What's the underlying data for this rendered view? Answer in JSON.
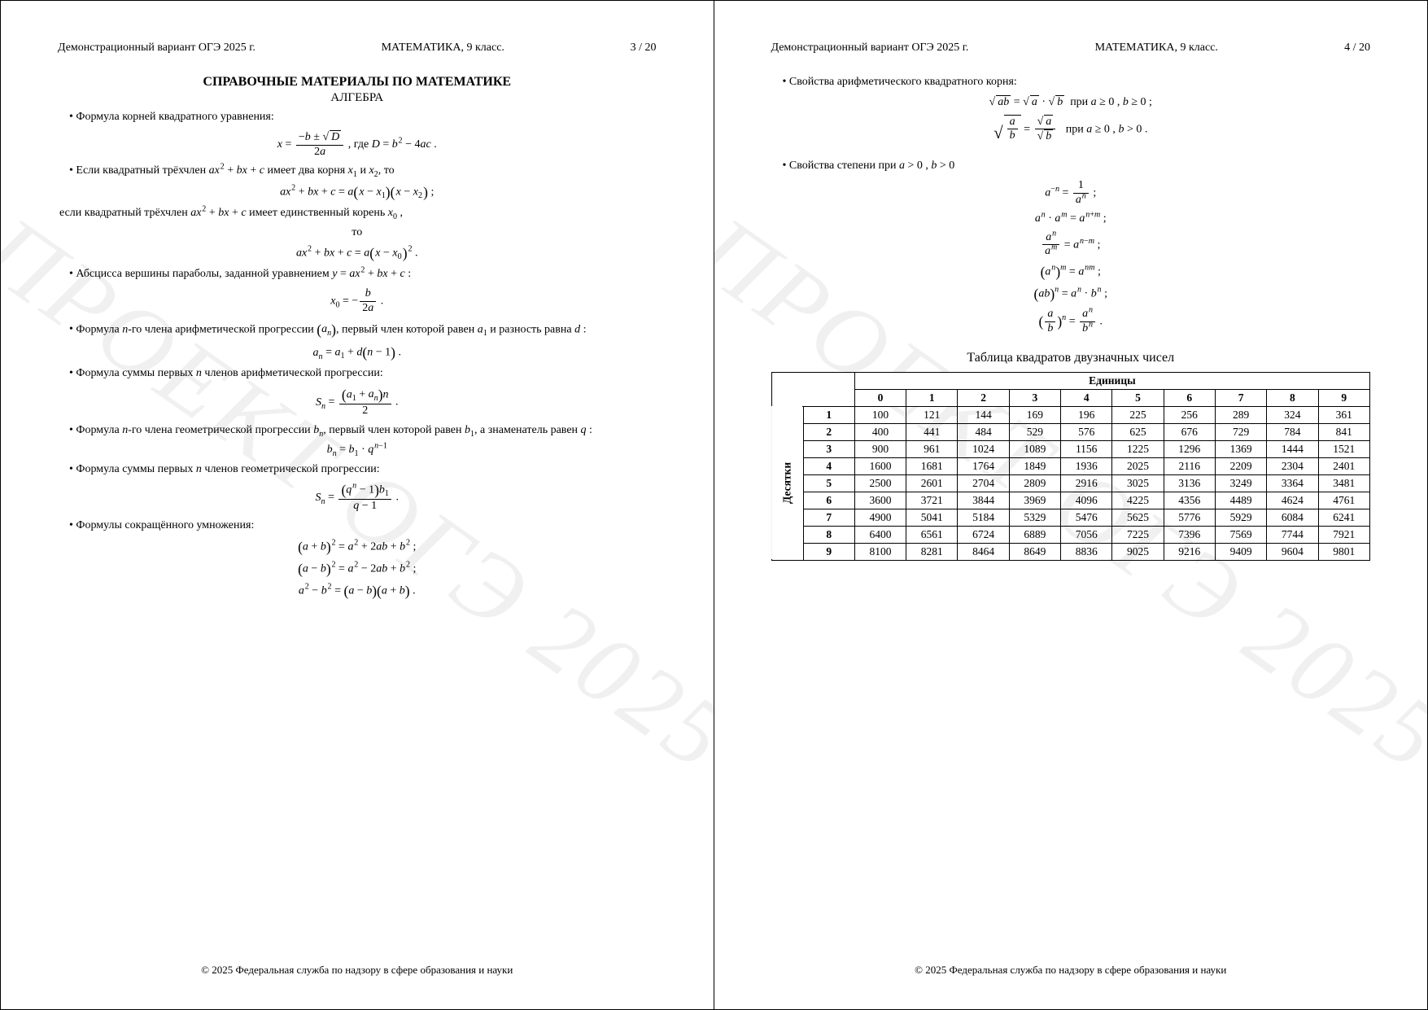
{
  "header_left": "Демонстрационный вариант ОГЭ 2025 г.",
  "header_center": "МАТЕМАТИКА, 9 класс.",
  "page3_num": "3 / 20",
  "page4_num": "4 / 20",
  "watermark": "ПРОЕКТ ОГЭ 2025",
  "footer": "© 2025 Федеральная служба по надзору в сфере образования и науки",
  "page3": {
    "title": "СПРАВОЧНЫЕ МАТЕРИАЛЫ ПО МАТЕМАТИКЕ",
    "subtitle": "АЛГЕБРА",
    "b1": "Формула корней квадратного уравнения:",
    "b2_pre": "Если квадратный трёхчлен ",
    "b2_post": " имеет два корня ",
    "b2_and": " и ",
    "b2_then": ", то",
    "b2_else_pre": "если квадратный трёхчлен ",
    "b2_else_post": " имеет единственный корень ",
    "b2_else_then": "то",
    "b3_pre": "Абсцисса вершины параболы, заданной уравнением ",
    "b4_pre": "Формула ",
    "b4_mid": "-го члена арифметической прогрессии ",
    "b4_post": ", первый член которой равен ",
    "b4_and": " и разность равна ",
    "b5": "Формула суммы первых ",
    "b5_post": " членов арифметической прогрессии:",
    "b6_pre": "Формула ",
    "b6_mid": "-го члена геометрической прогрессии ",
    "b6_post": ", первый член которой равен ",
    "b6_and": ", а знаменатель равен ",
    "b7": "Формула суммы первых ",
    "b7_post": " членов геометрической прогрессии:",
    "b8": "Формулы сокращённого умножения:"
  },
  "page4": {
    "b1": "Свойства арифметического квадратного корня:",
    "cond1": " при ",
    "b2": "Свойства степени при ",
    "table_title": "Таблица квадратов двузначных чисел",
    "units": "Единицы",
    "tens": "Десятки"
  },
  "table": {
    "cols": [
      "0",
      "1",
      "2",
      "3",
      "4",
      "5",
      "6",
      "7",
      "8",
      "9"
    ],
    "rows_header": [
      "1",
      "2",
      "3",
      "4",
      "5",
      "6",
      "7",
      "8",
      "9"
    ],
    "data": [
      [
        "100",
        "121",
        "144",
        "169",
        "196",
        "225",
        "256",
        "289",
        "324",
        "361"
      ],
      [
        "400",
        "441",
        "484",
        "529",
        "576",
        "625",
        "676",
        "729",
        "784",
        "841"
      ],
      [
        "900",
        "961",
        "1024",
        "1089",
        "1156",
        "1225",
        "1296",
        "1369",
        "1444",
        "1521"
      ],
      [
        "1600",
        "1681",
        "1764",
        "1849",
        "1936",
        "2025",
        "2116",
        "2209",
        "2304",
        "2401"
      ],
      [
        "2500",
        "2601",
        "2704",
        "2809",
        "2916",
        "3025",
        "3136",
        "3249",
        "3364",
        "3481"
      ],
      [
        "3600",
        "3721",
        "3844",
        "3969",
        "4096",
        "4225",
        "4356",
        "4489",
        "4624",
        "4761"
      ],
      [
        "4900",
        "5041",
        "5184",
        "5329",
        "5476",
        "5625",
        "5776",
        "5929",
        "6084",
        "6241"
      ],
      [
        "6400",
        "6561",
        "6724",
        "6889",
        "7056",
        "7225",
        "7396",
        "7569",
        "7744",
        "7921"
      ],
      [
        "8100",
        "8281",
        "8464",
        "8649",
        "8836",
        "9025",
        "9216",
        "9409",
        "9604",
        "9801"
      ]
    ]
  }
}
